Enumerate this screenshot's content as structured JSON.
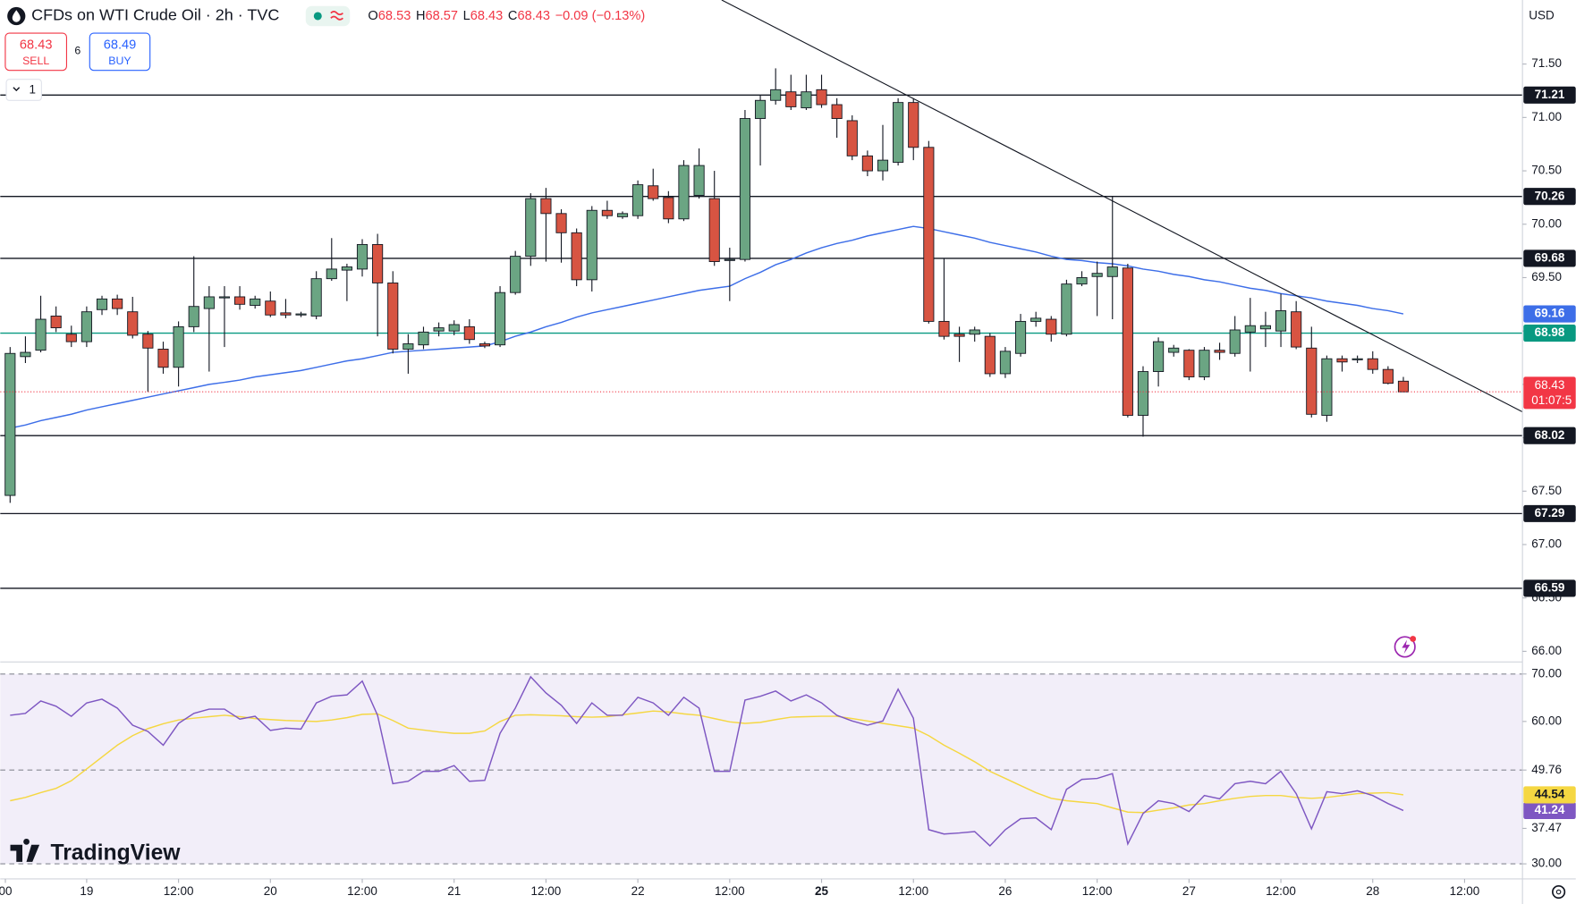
{
  "header": {
    "title": "CFDs on WTI Crude Oil · 2h · TVC",
    "ohlc_labels": [
      "O",
      "H",
      "L",
      "C"
    ],
    "change": "−0.09 (−0.13%)",
    "sell": {
      "price": 68.43,
      "label": "SELL"
    },
    "spread": 6,
    "buy": {
      "price": 68.49,
      "label": "BUY"
    },
    "interval_count": 1,
    "currency": "USD",
    "logo": "TradingView"
  },
  "chart_data": [
    {
      "type": "candlestick",
      "up_color": "#6ba583",
      "down_color": "#d75442",
      "open": [
        67.46,
        68.76,
        68.82,
        69.14,
        68.97,
        68.9,
        69.2,
        69.3,
        69.18,
        68.97,
        68.83,
        68.66,
        69.04,
        69.21,
        69.31,
        69.32,
        69.24,
        69.28,
        69.17,
        69.15,
        69.14,
        69.49,
        69.57,
        69.58,
        69.81,
        69.45,
        68.83,
        68.87,
        69.0,
        69.0,
        69.04,
        68.88,
        68.87,
        69.36,
        69.7,
        70.24,
        70.1,
        69.92,
        69.48,
        70.13,
        70.07,
        70.08,
        70.36,
        70.25,
        70.05,
        70.27,
        70.24,
        69.66,
        69.67,
        70.99,
        71.16,
        71.24,
        71.09,
        71.26,
        71.12,
        70.97,
        70.64,
        70.5,
        70.58,
        71.14,
        70.72,
        69.09,
        68.97,
        68.97,
        68.95,
        68.6,
        68.79,
        69.09,
        69.11,
        68.97,
        69.44,
        69.51,
        69.51,
        69.59,
        68.21,
        68.62,
        68.8,
        68.82,
        68.57,
        68.82,
        68.79,
        68.99,
        69.02,
        69.0,
        69.18,
        68.84,
        68.21,
        68.74,
        68.73,
        68.74,
        68.64,
        68.53
      ],
      "high": [
        68.85,
        68.95,
        69.33,
        69.23,
        69.05,
        69.23,
        69.33,
        69.34,
        69.32,
        69.0,
        68.9,
        69.09,
        69.7,
        69.42,
        69.42,
        69.42,
        69.33,
        69.37,
        69.3,
        69.18,
        69.56,
        69.87,
        69.63,
        69.86,
        69.91,
        69.56,
        68.97,
        69.04,
        69.08,
        69.1,
        69.11,
        68.9,
        69.42,
        69.75,
        70.29,
        70.34,
        70.14,
        69.96,
        70.17,
        70.22,
        70.12,
        70.41,
        70.52,
        70.31,
        70.6,
        70.71,
        70.5,
        69.78,
        71.07,
        71.21,
        71.46,
        71.4,
        71.4,
        71.4,
        71.18,
        71.02,
        70.69,
        70.93,
        71.18,
        71.18,
        70.78,
        69.68,
        69.04,
        69.04,
        68.98,
        68.85,
        69.16,
        69.18,
        69.14,
        69.48,
        69.56,
        69.65,
        70.26,
        69.63,
        68.67,
        68.94,
        68.87,
        68.83,
        68.85,
        68.89,
        69.14,
        69.31,
        69.18,
        69.35,
        69.28,
        69.04,
        68.77,
        68.77,
        68.77,
        68.81,
        68.67,
        68.57
      ],
      "low": [
        67.39,
        68.7,
        68.8,
        68.99,
        68.85,
        68.85,
        69.15,
        69.15,
        68.93,
        68.43,
        68.6,
        68.48,
        68.99,
        68.62,
        68.85,
        69.2,
        69.21,
        69.13,
        69.12,
        69.13,
        69.11,
        69.47,
        69.28,
        69.51,
        68.95,
        68.79,
        68.6,
        68.83,
        68.95,
        68.96,
        68.88,
        68.84,
        68.85,
        69.34,
        69.61,
        69.65,
        69.64,
        69.42,
        69.37,
        70.05,
        70.05,
        70.05,
        70.22,
        70.01,
        70.03,
        70.24,
        69.61,
        69.28,
        69.65,
        70.55,
        71.12,
        71.07,
        71.07,
        71.09,
        70.81,
        70.6,
        70.45,
        70.41,
        70.55,
        70.6,
        69.07,
        68.92,
        68.71,
        68.9,
        68.57,
        68.56,
        68.76,
        69.04,
        68.9,
        68.95,
        69.42,
        69.14,
        69.11,
        68.19,
        68.01,
        68.48,
        68.76,
        68.54,
        68.54,
        68.73,
        68.76,
        68.62,
        68.85,
        68.85,
        68.83,
        68.19,
        68.15,
        68.62,
        68.7,
        68.6,
        68.5,
        68.43
      ],
      "close": [
        68.79,
        68.8,
        69.11,
        69.03,
        68.9,
        69.18,
        69.3,
        69.21,
        68.96,
        68.84,
        68.66,
        69.04,
        69.23,
        69.32,
        69.32,
        69.25,
        69.3,
        69.15,
        69.15,
        69.16,
        69.49,
        69.58,
        69.6,
        69.81,
        69.45,
        68.83,
        68.88,
        68.99,
        69.03,
        69.06,
        68.92,
        68.86,
        69.36,
        69.7,
        70.24,
        70.1,
        69.92,
        69.48,
        70.13,
        70.08,
        70.1,
        70.37,
        70.24,
        70.05,
        70.55,
        70.55,
        69.65,
        69.67,
        70.99,
        71.16,
        71.26,
        71.1,
        71.24,
        71.12,
        70.99,
        70.64,
        70.5,
        70.6,
        71.14,
        70.72,
        69.09,
        68.95,
        68.95,
        69.01,
        68.6,
        68.81,
        69.09,
        69.12,
        68.97,
        69.44,
        69.5,
        69.54,
        69.6,
        68.21,
        68.62,
        68.9,
        68.84,
        68.57,
        68.82,
        68.8,
        69.01,
        69.05,
        69.05,
        69.19,
        68.85,
        68.22,
        68.74,
        68.71,
        68.74,
        68.64,
        68.51,
        68.43
      ],
      "ma": {
        "color": "#3d6ee8",
        "values": [
          68.09,
          68.12,
          68.16,
          68.19,
          68.22,
          68.26,
          68.29,
          68.32,
          68.35,
          68.38,
          68.41,
          68.44,
          68.47,
          68.5,
          68.52,
          68.54,
          68.57,
          68.59,
          68.61,
          68.63,
          68.66,
          68.69,
          68.72,
          68.74,
          68.77,
          68.8,
          68.81,
          68.82,
          68.83,
          68.84,
          68.85,
          68.86,
          68.9,
          68.95,
          68.99,
          69.04,
          69.08,
          69.13,
          69.17,
          69.2,
          69.23,
          69.26,
          69.29,
          69.32,
          69.35,
          69.38,
          69.4,
          69.42,
          69.49,
          69.55,
          69.62,
          69.67,
          69.73,
          69.78,
          69.82,
          69.85,
          69.89,
          69.92,
          69.95,
          69.98,
          69.96,
          69.93,
          69.9,
          69.87,
          69.83,
          69.8,
          69.77,
          69.74,
          69.7,
          69.67,
          69.66,
          69.64,
          69.63,
          69.61,
          69.58,
          69.56,
          69.53,
          69.51,
          69.48,
          69.46,
          69.43,
          69.4,
          69.38,
          69.35,
          69.33,
          69.31,
          69.28,
          69.26,
          69.24,
          69.21,
          69.19,
          69.16
        ]
      },
      "levels": [
        {
          "value": 71.21,
          "color": "#131722"
        },
        {
          "value": 70.26,
          "color": "#131722"
        },
        {
          "value": 69.68,
          "color": "#131722"
        },
        {
          "value": 68.98,
          "color": "#089981"
        },
        {
          "value": 68.02,
          "color": "#131722"
        },
        {
          "value": 67.29,
          "color": "#131722"
        },
        {
          "value": 66.59,
          "color": "#131722"
        }
      ],
      "price_color": "#f23645",
      "countdown": "01:07:5",
      "xlim": [
        -0.643,
        98.78
      ],
      "xticks": [
        {
          "value": -0.31,
          "label": "00"
        },
        {
          "value": 5,
          "label": "19"
        },
        {
          "value": 11,
          "label": "12:00"
        },
        {
          "value": 17,
          "label": "20"
        },
        {
          "value": 23,
          "label": "12:00"
        },
        {
          "value": 29,
          "label": "21"
        },
        {
          "value": 35,
          "label": "12:00"
        },
        {
          "value": 41,
          "label": "22"
        },
        {
          "value": 47,
          "label": "12:00"
        },
        {
          "value": 53,
          "label": "25"
        },
        {
          "value": 59,
          "label": "12:00"
        },
        {
          "value": 65,
          "label": "26"
        },
        {
          "value": 71,
          "label": "12:00"
        },
        {
          "value": 77,
          "label": "27"
        },
        {
          "value": 83,
          "label": "12:00"
        },
        {
          "value": 89,
          "label": "28"
        },
        {
          "value": 95,
          "label": "12:00"
        }
      ],
      "ylim": [
        65.91,
        72.1
      ],
      "yticks": [
        {
          "value": 66,
          "label": "66.00"
        },
        {
          "value": 66.5,
          "label": "66.50"
        },
        {
          "value": 67,
          "label": "67.00"
        },
        {
          "value": 67.5,
          "label": "67.50"
        },
        {
          "value": 68,
          "label": "68.00"
        },
        {
          "value": 68.5,
          "label": "68.50"
        },
        {
          "value": 69,
          "label": "69.00"
        },
        {
          "value": 69.5,
          "label": "69.50"
        },
        {
          "value": 70,
          "label": "70.00"
        },
        {
          "value": 70.5,
          "label": "70.50"
        },
        {
          "value": 71,
          "label": "71.00"
        },
        {
          "value": 71.5,
          "label": "71.50"
        }
      ],
      "grid": false
    },
    {
      "type": "line",
      "series": [
        {
          "color": "#7e57c2",
          "values": [
            61.3,
            61.7,
            64.3,
            63.2,
            61.1,
            63.9,
            64.7,
            62.8,
            59.2,
            57.9,
            55.0,
            59.6,
            61.7,
            62.6,
            62.6,
            60.5,
            61.1,
            58.1,
            58.6,
            58.4,
            63.9,
            65.3,
            65.6,
            68.5,
            61.3,
            46.9,
            47.4,
            49.5,
            49.5,
            50.7,
            47.4,
            47.6,
            57.5,
            62.8,
            69.4,
            66.0,
            63.4,
            59.6,
            63.9,
            61.3,
            61.3,
            65.1,
            63.9,
            61.3,
            65.1,
            62.8,
            49.5,
            49.5,
            64.5,
            65.3,
            66.4,
            64.3,
            65.6,
            63.9,
            61.3,
            60.1,
            59.2,
            60.1,
            66.8,
            60.7,
            37.2,
            36.3,
            36.5,
            36.8,
            33.8,
            37.2,
            39.5,
            39.7,
            37.2,
            45.7,
            47.8,
            48.0,
            49.0,
            34.2,
            40.6,
            43.3,
            42.7,
            41.0,
            44.4,
            43.7,
            46.9,
            47.4,
            46.9,
            49.5,
            44.8,
            37.4,
            45.2,
            44.8,
            45.4,
            44.4,
            42.7,
            41.24
          ]
        },
        {
          "color": "#f5d742",
          "values": [
            43.3,
            44.0,
            45.0,
            45.9,
            47.5,
            50.0,
            52.5,
            55.0,
            57.0,
            58.5,
            59.5,
            60.3,
            60.7,
            61.0,
            61.3,
            61.0,
            60.6,
            60.4,
            60.2,
            60.1,
            60.0,
            60.3,
            60.8,
            61.5,
            61.6,
            60.2,
            58.6,
            58.2,
            57.8,
            57.5,
            57.5,
            58.0,
            60.0,
            61.3,
            61.4,
            61.3,
            61.2,
            61.0,
            60.9,
            61.0,
            61.4,
            61.8,
            62.2,
            62.0,
            61.6,
            61.3,
            60.6,
            59.9,
            59.6,
            59.8,
            60.4,
            60.9,
            61.0,
            61.1,
            61.1,
            60.6,
            60.1,
            59.6,
            59.1,
            58.6,
            57.0,
            55.0,
            53.3,
            51.5,
            49.5,
            48.0,
            46.5,
            45.0,
            43.8,
            43.3,
            43.0,
            42.7,
            41.8,
            40.9,
            40.8,
            41.3,
            41.8,
            42.4,
            42.7,
            43.3,
            43.8,
            44.2,
            44.4,
            44.4,
            44.0,
            43.8,
            44.0,
            44.4,
            44.8,
            44.9,
            45.0,
            44.54
          ]
        }
      ],
      "band": [
        30,
        70
      ],
      "hlines": [
        70,
        49.76,
        30
      ],
      "xlim": [
        -0.643,
        98.78
      ],
      "ylim": [
        26.83,
        72.33
      ],
      "yticks": [
        {
          "value": 70,
          "label": "70.00"
        },
        {
          "value": 60,
          "label": "60.00"
        },
        {
          "value": 49.76,
          "label": "49.76"
        },
        {
          "value": 37.47,
          "label": "37.47"
        },
        {
          "value": 30,
          "label": "30.00"
        }
      ]
    }
  ]
}
